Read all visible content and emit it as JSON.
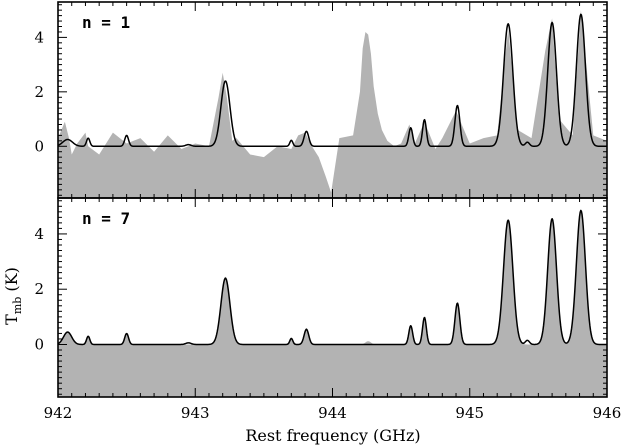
{
  "chart_data": {
    "type": "line",
    "xlabel": "Rest frequency (GHz)",
    "ylabel": "T",
    "ylabel_sub": "mb",
    "ylabel_unit": " (K)",
    "xlim": [
      942.0,
      946.0
    ],
    "x_ticks": [
      942,
      943,
      944,
      945,
      946
    ],
    "x_tick_labels": [
      "942",
      "943",
      "944",
      "945",
      "946"
    ],
    "colors": {
      "observed": "#b3b3b3",
      "model": "#000000"
    },
    "panels": [
      {
        "label": "n = 1",
        "ylim": [
          -1.9,
          5.3
        ],
        "y_ticks": [
          0,
          2,
          4
        ],
        "y_tick_labels": [
          "0",
          "2",
          "4"
        ],
        "series": [
          {
            "role": "observed",
            "style": "filled",
            "x": [
              942.0,
              942.05,
              942.08,
              942.1,
              942.14,
              942.2,
              942.22,
              942.3,
              942.4,
              942.5,
              942.6,
              942.7,
              942.8,
              942.9,
              943.0,
              943.1,
              943.17,
              943.2,
              943.23,
              943.27,
              943.3,
              943.4,
              943.5,
              943.6,
              943.7,
              943.75,
              943.8,
              943.85,
              943.9,
              943.95,
              943.99,
              944.05,
              944.15,
              944.2,
              944.22,
              944.24,
              944.26,
              944.28,
              944.3,
              944.33,
              944.36,
              944.4,
              944.45,
              944.5,
              944.56,
              944.6,
              944.67,
              944.75,
              944.8,
              944.9,
              945.0,
              945.1,
              945.2,
              945.28,
              945.35,
              945.45,
              945.55,
              945.6,
              945.65,
              945.75,
              945.81,
              945.9,
              946.0
            ],
            "y": [
              0.3,
              0.9,
              0.3,
              -0.3,
              0.1,
              0.5,
              0.0,
              -0.3,
              0.5,
              0.1,
              0.3,
              -0.2,
              0.4,
              -0.1,
              0.1,
              0.0,
              1.8,
              2.7,
              1.8,
              0.2,
              0.3,
              -0.3,
              -0.4,
              0.0,
              -0.1,
              0.4,
              0.5,
              0.0,
              -0.4,
              -1.1,
              -1.7,
              0.3,
              0.4,
              2.0,
              3.6,
              4.2,
              4.1,
              3.4,
              2.2,
              1.2,
              0.6,
              0.2,
              0.0,
              0.1,
              0.8,
              0.1,
              0.9,
              -0.1,
              0.3,
              1.3,
              0.1,
              0.3,
              0.4,
              4.3,
              0.6,
              0.3,
              3.5,
              4.7,
              1.0,
              0.4,
              5.0,
              0.4,
              0.2
            ]
          },
          {
            "role": "model",
            "style": "line",
            "peaks": [
              {
                "x": 942.07,
                "h": 0.25,
                "w": 0.035
              },
              {
                "x": 942.22,
                "h": 0.3,
                "w": 0.012
              },
              {
                "x": 942.5,
                "h": 0.4,
                "w": 0.014
              },
              {
                "x": 942.95,
                "h": 0.06,
                "w": 0.02
              },
              {
                "x": 943.22,
                "h": 2.4,
                "w": 0.033
              },
              {
                "x": 943.7,
                "h": 0.22,
                "w": 0.011
              },
              {
                "x": 943.81,
                "h": 0.55,
                "w": 0.017
              },
              {
                "x": 944.57,
                "h": 0.68,
                "w": 0.014
              },
              {
                "x": 944.67,
                "h": 0.98,
                "w": 0.014
              },
              {
                "x": 944.91,
                "h": 1.5,
                "w": 0.018
              },
              {
                "x": 945.28,
                "h": 4.5,
                "w": 0.034
              },
              {
                "x": 945.42,
                "h": 0.15,
                "w": 0.015
              },
              {
                "x": 945.6,
                "h": 4.55,
                "w": 0.032
              },
              {
                "x": 945.81,
                "h": 4.85,
                "w": 0.033
              }
            ]
          }
        ]
      },
      {
        "label": "n = 7",
        "ylim": [
          -1.9,
          5.3
        ],
        "y_ticks": [
          0,
          2,
          4
        ],
        "y_tick_labels": [
          "0",
          "2",
          "4"
        ],
        "series": [
          {
            "role": "observed",
            "style": "filled",
            "peaks": [
              {
                "x": 942.07,
                "h": 0.45,
                "w": 0.03
              },
              {
                "x": 942.22,
                "h": 0.3,
                "w": 0.012
              },
              {
                "x": 942.5,
                "h": 0.4,
                "w": 0.014
              },
              {
                "x": 943.22,
                "h": 2.45,
                "w": 0.033
              },
              {
                "x": 943.7,
                "h": 0.22,
                "w": 0.011
              },
              {
                "x": 943.81,
                "h": 0.6,
                "w": 0.017
              },
              {
                "x": 944.26,
                "h": 0.12,
                "w": 0.02
              },
              {
                "x": 944.57,
                "h": 0.7,
                "w": 0.014
              },
              {
                "x": 944.67,
                "h": 1.0,
                "w": 0.014
              },
              {
                "x": 944.91,
                "h": 1.5,
                "w": 0.018
              },
              {
                "x": 945.28,
                "h": 4.5,
                "w": 0.034
              },
              {
                "x": 945.6,
                "h": 4.55,
                "w": 0.032
              },
              {
                "x": 945.81,
                "h": 4.9,
                "w": 0.033
              }
            ]
          },
          {
            "role": "model",
            "style": "line",
            "peaks": [
              {
                "x": 942.07,
                "h": 0.45,
                "w": 0.03
              },
              {
                "x": 942.22,
                "h": 0.3,
                "w": 0.012
              },
              {
                "x": 942.5,
                "h": 0.4,
                "w": 0.014
              },
              {
                "x": 942.95,
                "h": 0.06,
                "w": 0.02
              },
              {
                "x": 943.22,
                "h": 2.4,
                "w": 0.033
              },
              {
                "x": 943.7,
                "h": 0.22,
                "w": 0.011
              },
              {
                "x": 943.81,
                "h": 0.55,
                "w": 0.017
              },
              {
                "x": 944.57,
                "h": 0.68,
                "w": 0.014
              },
              {
                "x": 944.67,
                "h": 0.98,
                "w": 0.014
              },
              {
                "x": 944.91,
                "h": 1.5,
                "w": 0.018
              },
              {
                "x": 945.28,
                "h": 4.5,
                "w": 0.034
              },
              {
                "x": 945.42,
                "h": 0.15,
                "w": 0.015
              },
              {
                "x": 945.6,
                "h": 4.55,
                "w": 0.032
              },
              {
                "x": 945.81,
                "h": 4.85,
                "w": 0.033
              }
            ]
          }
        ]
      }
    ]
  }
}
